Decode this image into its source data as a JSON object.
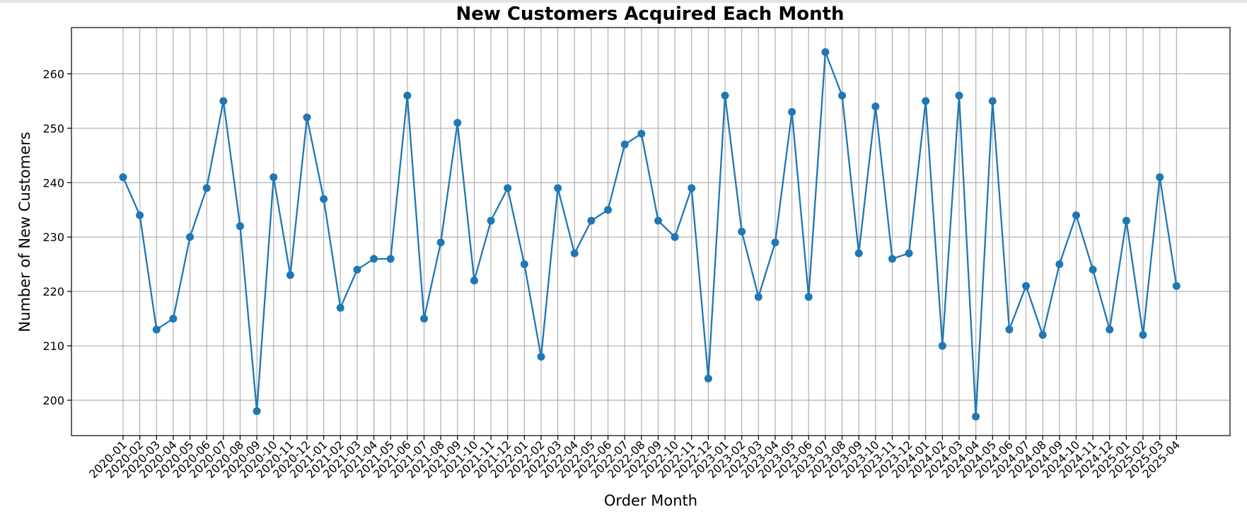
{
  "chart_data": {
    "type": "line",
    "title": "New Customers Acquired Each Month",
    "xlabel": "Order Month",
    "ylabel": "Number of New Customers",
    "ylim": [
      193.5,
      268.5
    ],
    "yticks": [
      200,
      210,
      220,
      230,
      240,
      250,
      260
    ],
    "grid": true,
    "color": "#1f77b4",
    "marker": "circle",
    "x": [
      "2020-01",
      "2020-02",
      "2020-03",
      "2020-04",
      "2020-05",
      "2020-06",
      "2020-07",
      "2020-08",
      "2020-09",
      "2020-10",
      "2020-11",
      "2020-12",
      "2021-01",
      "2021-02",
      "2021-03",
      "2021-04",
      "2021-05",
      "2021-06",
      "2021-07",
      "2021-08",
      "2021-09",
      "2021-10",
      "2021-11",
      "2021-12",
      "2022-01",
      "2022-02",
      "2022-03",
      "2022-04",
      "2022-05",
      "2022-06",
      "2022-07",
      "2022-08",
      "2022-09",
      "2022-10",
      "2022-11",
      "2022-12",
      "2023-01",
      "2023-02",
      "2023-03",
      "2023-04",
      "2023-05",
      "2023-06",
      "2023-07",
      "2023-08",
      "2023-09",
      "2023-10",
      "2023-11",
      "2023-12",
      "2024-01",
      "2024-02",
      "2024-03",
      "2024-04",
      "2024-05",
      "2024-06",
      "2024-07",
      "2024-08",
      "2024-09",
      "2024-10",
      "2024-11",
      "2024-12",
      "2025-01",
      "2025-02",
      "2025-03",
      "2025-04"
    ],
    "values": [
      241,
      234,
      213,
      215,
      230,
      239,
      255,
      232,
      198,
      241,
      223,
      252,
      237,
      217,
      224,
      226,
      226,
      256,
      215,
      229,
      251,
      222,
      233,
      239,
      225,
      208,
      239,
      227,
      233,
      235,
      247,
      249,
      233,
      230,
      239,
      204,
      256,
      231,
      219,
      229,
      253,
      219,
      264,
      256,
      227,
      254,
      226,
      227,
      255,
      210,
      256,
      197,
      255,
      213,
      221,
      212,
      225,
      234,
      224,
      213,
      233,
      212,
      241,
      221
    ]
  }
}
